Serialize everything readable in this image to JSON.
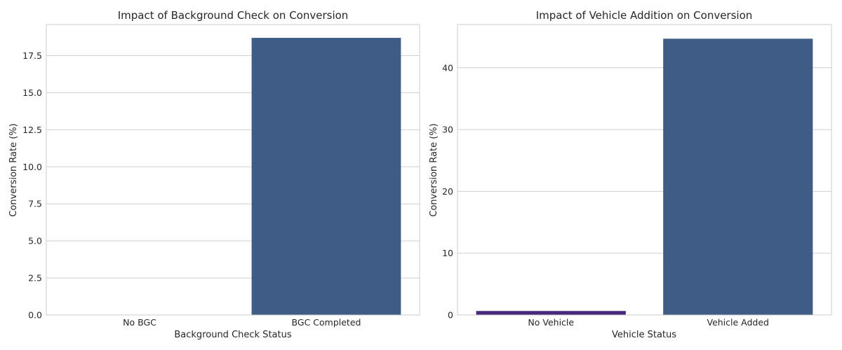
{
  "chart_data": [
    {
      "type": "bar",
      "title": "Impact of Background Check on Conversion",
      "xlabel": "Background Check Status",
      "ylabel": "Conversion Rate (%)",
      "categories": [
        "No BGC",
        "BGC Completed"
      ],
      "values": [
        0,
        18.7
      ],
      "bar_colors": [
        "#482878",
        "#3e5c85"
      ],
      "ylim": [
        0,
        19.6
      ],
      "yticks": [
        0,
        2.5,
        5,
        7.5,
        10,
        12.5,
        15,
        17.5
      ],
      "ytick_labels": [
        "0.0",
        "2.5",
        "5.0",
        "7.5",
        "10.0",
        "12.5",
        "15.0",
        "17.5"
      ],
      "grid": "horizontal"
    },
    {
      "type": "bar",
      "title": "Impact of Vehicle Addition on Conversion",
      "xlabel": "Vehicle Status",
      "ylabel": "Conversion Rate (%)",
      "categories": [
        "No Vehicle",
        "Vehicle Added"
      ],
      "values": [
        0.65,
        44.7
      ],
      "bar_colors": [
        "#482878",
        "#3e5c85"
      ],
      "ylim": [
        0,
        47
      ],
      "yticks": [
        0,
        10,
        20,
        30,
        40
      ],
      "ytick_labels": [
        "0",
        "10",
        "20",
        "30",
        "40"
      ],
      "grid": "horizontal"
    }
  ]
}
